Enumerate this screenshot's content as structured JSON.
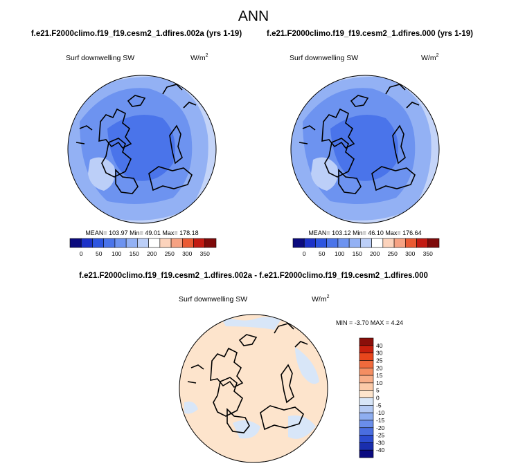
{
  "header": {
    "title": "ANN"
  },
  "panels": [
    {
      "title": "f.e21.F2000climo.f19_f19.cesm2_1.dfires.002a (yrs 1-19)",
      "field": "Surf downwelling SW",
      "units": "W/m",
      "units_sup": "2",
      "stats": "MEAN= 103.97  Min=  49.01  Max= 178.18",
      "colorbar": {
        "labels": [
          0,
          50,
          100,
          150,
          200,
          250,
          300,
          350
        ],
        "colors": [
          "#0b0b7e",
          "#1c32c8",
          "#2d55e0",
          "#4a74ea",
          "#6d93f0",
          "#93b1f4",
          "#bccff8",
          "#ffffff",
          "#fcd3bc",
          "#f6a283",
          "#ea5a33",
          "#c21a12",
          "#7e0a0a"
        ]
      }
    },
    {
      "title": "f.e21.F2000climo.f19_f19.cesm2_1.dfires.000 (yrs 1-19)",
      "field": "Surf downwelling SW",
      "units": "W/m",
      "units_sup": "2",
      "stats": "MEAN= 103.12  Min=  46.10  Max= 176.64",
      "colorbar": {
        "labels": [
          0,
          50,
          100,
          150,
          200,
          250,
          300,
          350
        ],
        "colors": [
          "#0b0b7e",
          "#1c32c8",
          "#2d55e0",
          "#4a74ea",
          "#6d93f0",
          "#93b1f4",
          "#bccff8",
          "#ffffff",
          "#fcd3bc",
          "#f6a283",
          "#ea5a33",
          "#c21a12",
          "#7e0a0a"
        ]
      }
    },
    {
      "title": "f.e21.F2000climo.f19_f19.cesm2_1.dfires.002a - f.e21.F2000climo.f19_f19.cesm2_1.dfires.000",
      "field": "Surf downwelling SW",
      "units": "W/m",
      "units_sup": "2",
      "stats": "MIN = -3.70 MAX =  4.24",
      "colorbar": {
        "labels": [
          40,
          30,
          25,
          20,
          15,
          10,
          5,
          0,
          -5,
          -10,
          -15,
          -20,
          -25,
          -30,
          -40
        ],
        "colors": [
          "#8a0f0a",
          "#c8200e",
          "#e8461c",
          "#f06a3c",
          "#f48e62",
          "#f8ae88",
          "#fbcaa8",
          "#fde4cc",
          "#d8e6f8",
          "#b4caf4",
          "#8eaef0",
          "#6a8eea",
          "#4a6ee0",
          "#2c4cd0",
          "#1a2eae",
          "#0a0a80"
        ]
      }
    }
  ]
}
